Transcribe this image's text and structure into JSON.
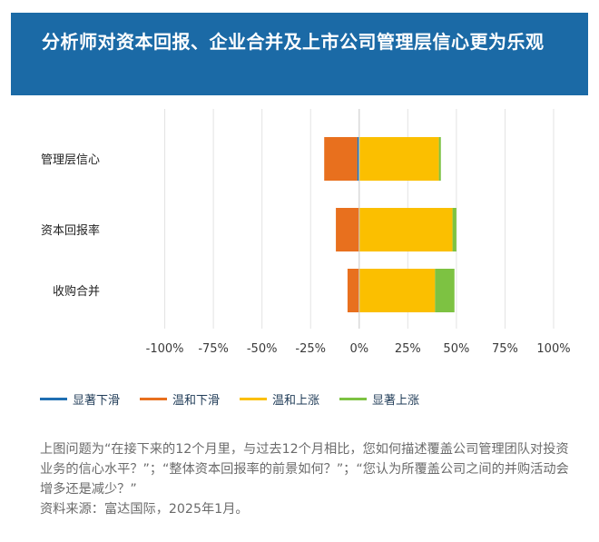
{
  "header": {
    "title": "分析师对资本回报、企业合并及上市公司管理层信心更为乐观"
  },
  "chart_data": {
    "type": "bar",
    "orientation": "horizontal",
    "stacked": "diverging",
    "categories": [
      "管理层信心",
      "资本回报率",
      "收购合并"
    ],
    "series": [
      {
        "name": "显著下滑",
        "color": "#1f6fb2",
        "side": "negative",
        "values": [
          -1,
          0,
          0
        ]
      },
      {
        "name": "温和下滑",
        "color": "#e8701e",
        "side": "negative",
        "values": [
          -17,
          -12,
          -6
        ]
      },
      {
        "name": "温和上涨",
        "color": "#fbbf00",
        "side": "positive",
        "values": [
          41,
          48,
          39
        ]
      },
      {
        "name": "显著上涨",
        "color": "#7dc242",
        "side": "positive",
        "values": [
          1,
          2,
          10
        ]
      }
    ],
    "xticks": [
      "-100%",
      "-75%",
      "-50%",
      "-25%",
      "0%",
      "25%",
      "50%",
      "75%",
      "100%"
    ],
    "xlim": [
      -125,
      100
    ],
    "grid": true,
    "legend_position": "bottom"
  },
  "legend": [
    {
      "label": "显著下滑",
      "color": "#1f6fb2"
    },
    {
      "label": "温和下滑",
      "color": "#e8701e"
    },
    {
      "label": "温和上涨",
      "color": "#fbbf00"
    },
    {
      "label": "显著上涨",
      "color": "#7dc242"
    }
  ],
  "note": {
    "question": "上图问题为“在接下来的12个月里，与过去12个月相比，您如何描述覆盖公司管理团队对投资业务的信心水平？”；“整体资本回报率的前景如何？”；“您认为所覆盖公司之间的并购活动会增多还是减少？”",
    "source": "资料来源：富达国际，2025年1月。"
  }
}
